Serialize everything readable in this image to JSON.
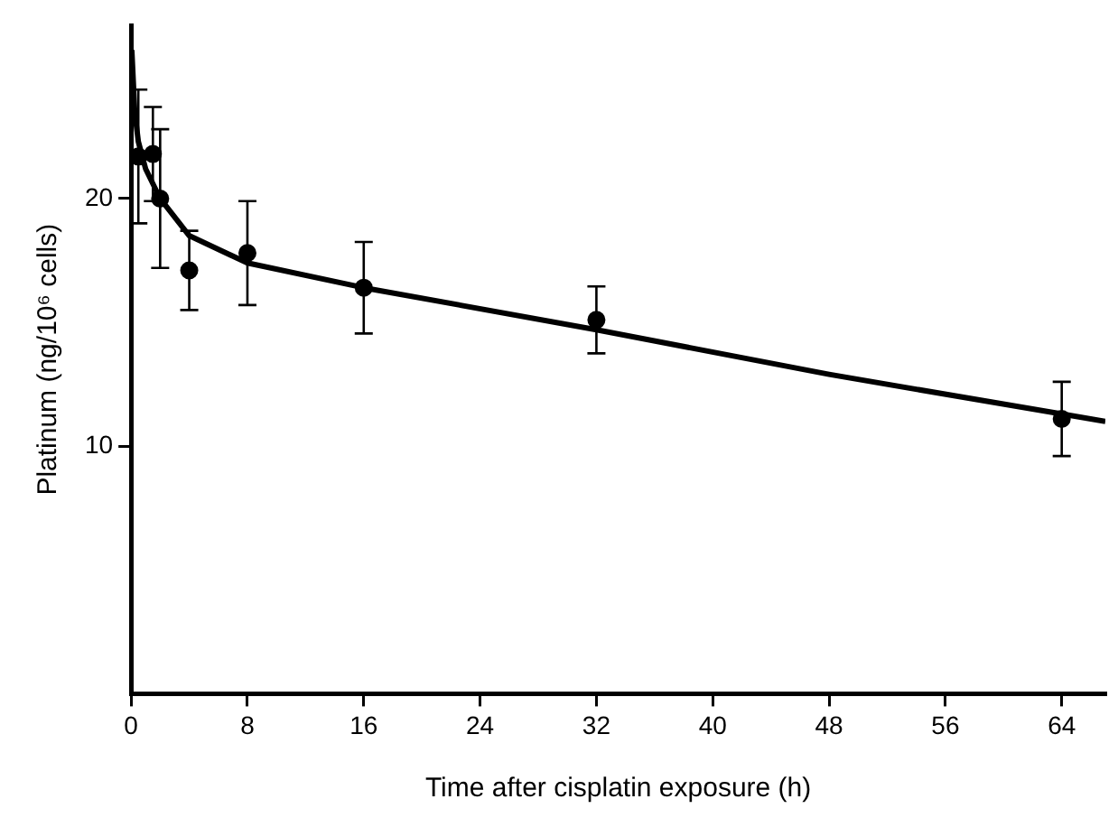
{
  "chart_data": {
    "type": "scatter",
    "xlabel": "Time after cisplatin exposure (h)",
    "ylabel": "Platinum (ng/10⁶ cells)",
    "xlim": [
      0,
      67
    ],
    "xticks": [
      0,
      8,
      16,
      24,
      32,
      40,
      48,
      56,
      64
    ],
    "ylim": [
      0,
      27
    ],
    "yticks": [
      10,
      20
    ],
    "grid": false,
    "legend": false,
    "series": [
      {
        "color": "#000000",
        "marker": "circle",
        "x": [
          0.5,
          1.5,
          2,
          4,
          8,
          16,
          32,
          64
        ],
        "values": [
          21.7,
          21.8,
          20.0,
          17.1,
          17.8,
          16.4,
          15.1,
          11.1
        ],
        "errors": [
          2.7,
          1.9,
          2.8,
          1.6,
          2.1,
          1.85,
          1.35,
          1.5
        ]
      },
      {
        "type": "line",
        "color": "#000000",
        "marker": "none",
        "line_style": "solid",
        "x": [
          0.05,
          0.25,
          0.5,
          1,
          2,
          4,
          8,
          16,
          32,
          48,
          64,
          67
        ],
        "values": [
          26,
          23.5,
          22.3,
          21.2,
          20.0,
          18.5,
          17.4,
          16.4,
          14.7,
          12.9,
          11.3,
          11.0
        ]
      }
    ]
  }
}
